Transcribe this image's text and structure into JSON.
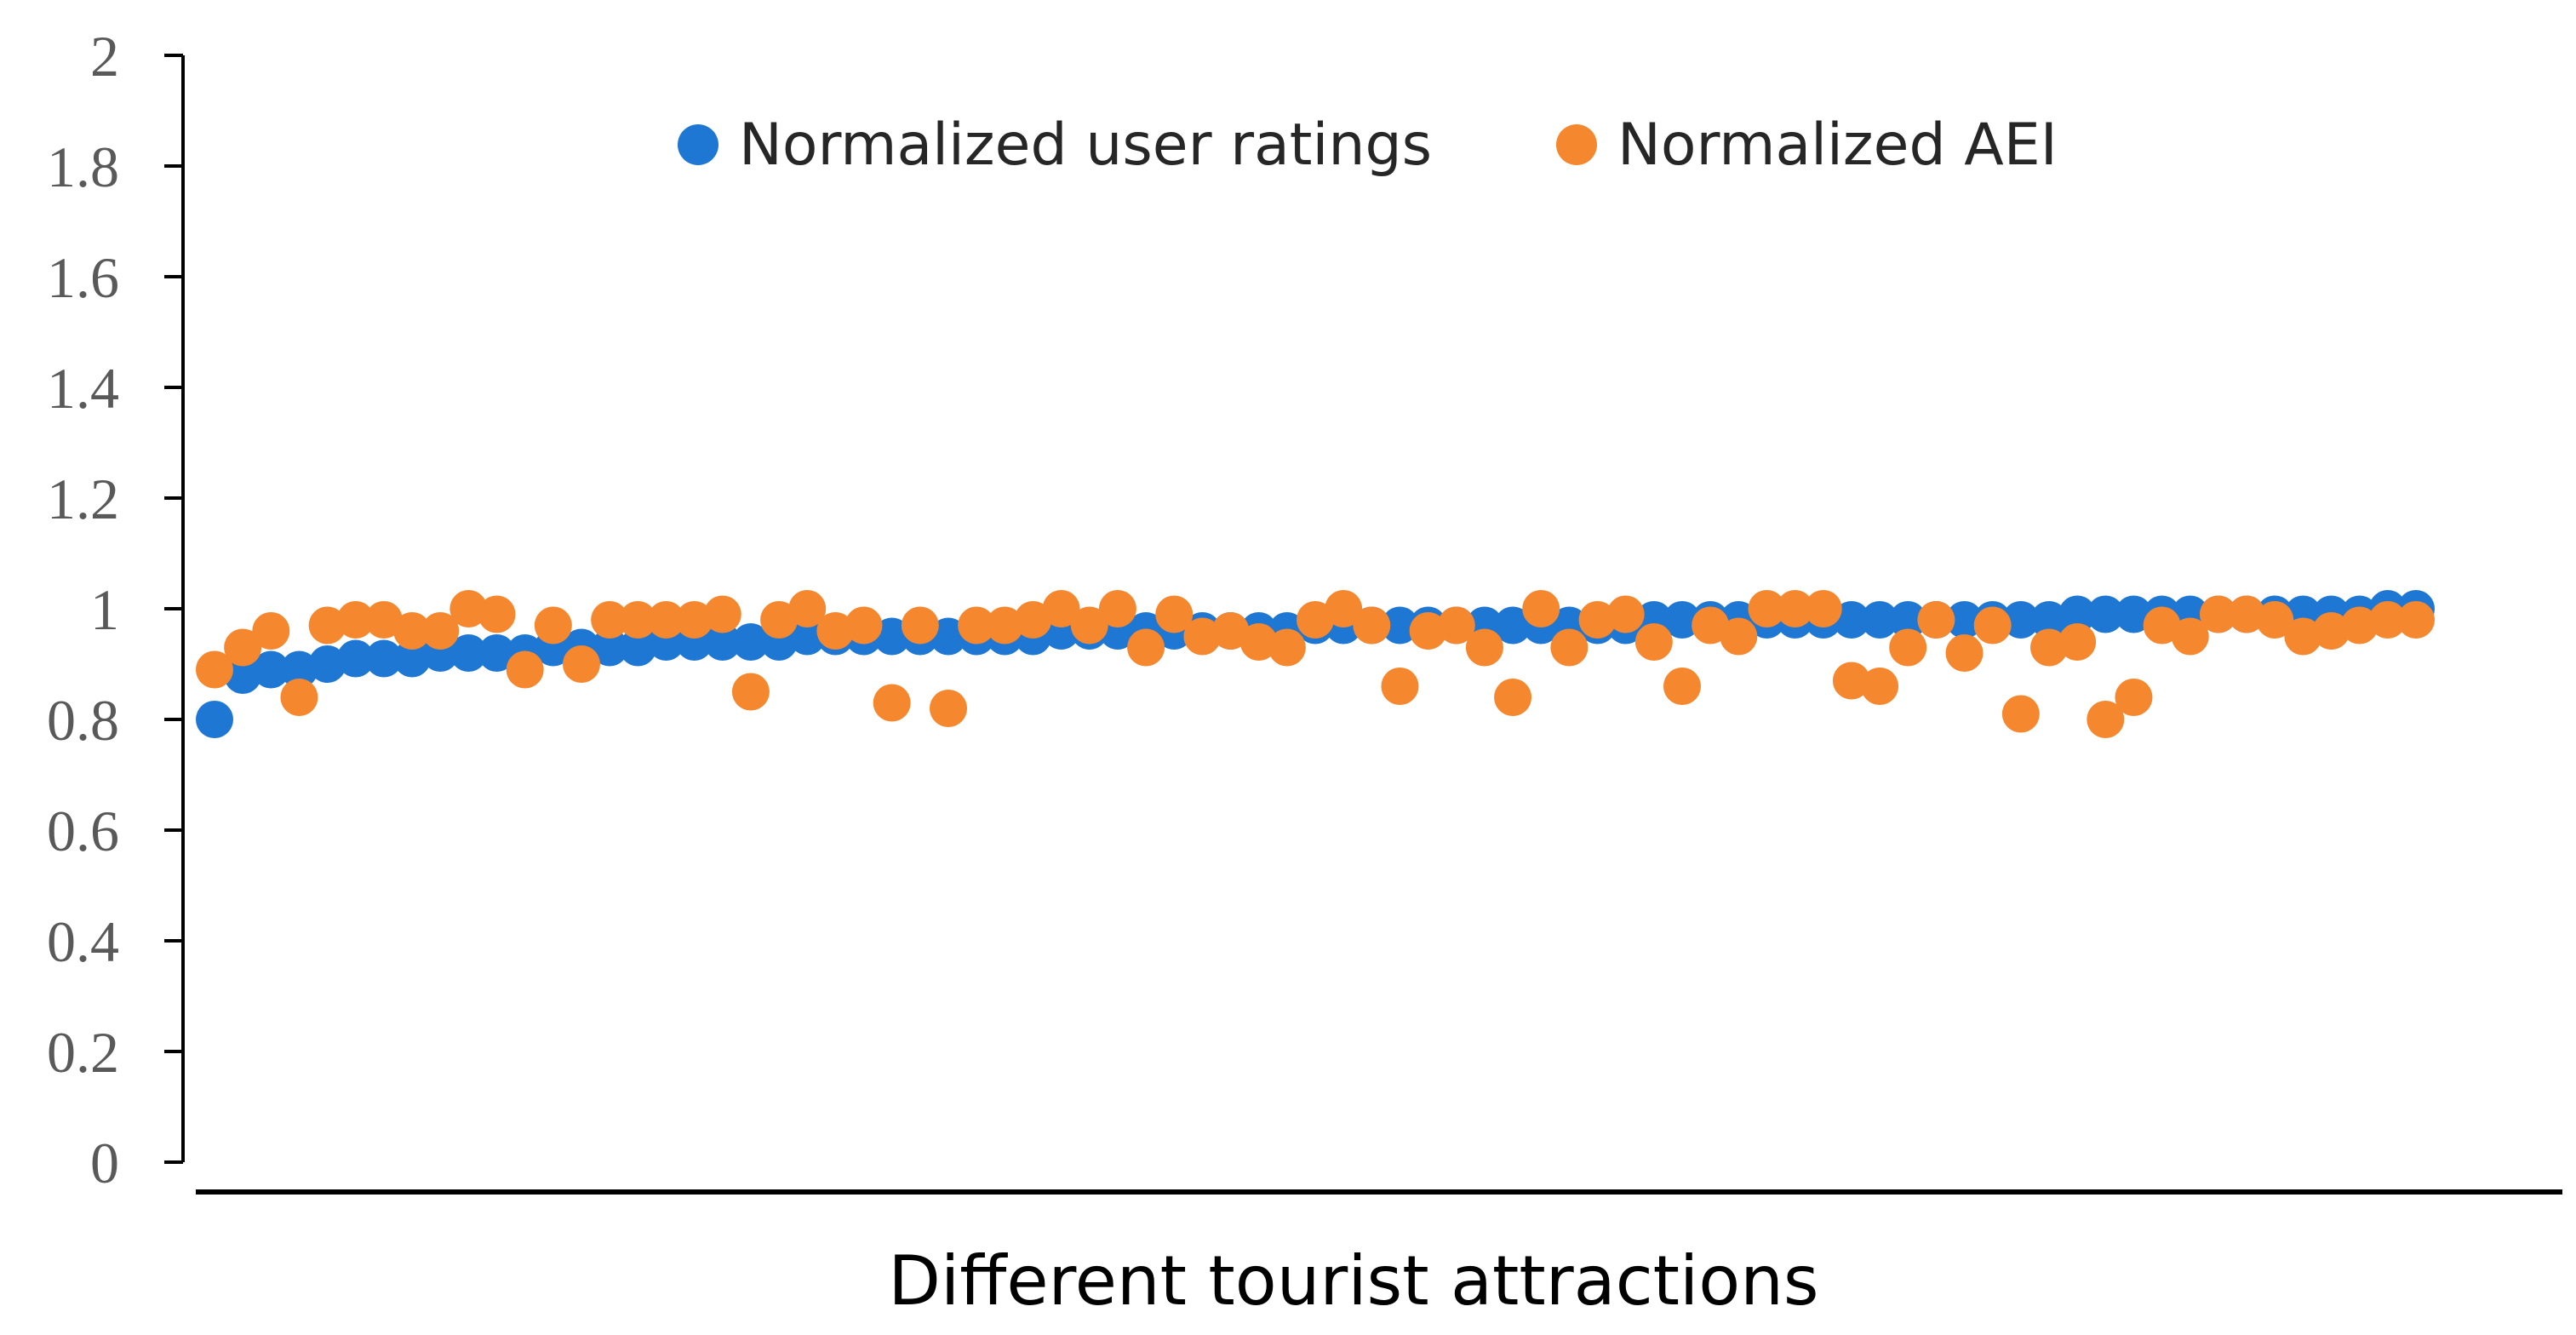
{
  "chart_data": {
    "type": "scatter",
    "title": "",
    "xlabel": "Different tourist attractions",
    "ylabel": "",
    "ylim": [
      0,
      2
    ],
    "yticks": [
      0,
      0.2,
      0.4,
      0.6,
      0.8,
      1,
      1.2,
      1.4,
      1.6,
      1.8,
      2
    ],
    "ytick_labels": [
      "0",
      "0.2",
      "0.4",
      "0.6",
      "0.8",
      "1",
      "1.2",
      "1.4",
      "1.6",
      "1.8",
      "2"
    ],
    "grid": false,
    "legend_position": "top-center",
    "x": [
      1,
      2,
      3,
      4,
      5,
      6,
      7,
      8,
      9,
      10,
      11,
      12,
      13,
      14,
      15,
      16,
      17,
      18,
      19,
      20,
      21,
      22,
      23,
      24,
      25,
      26,
      27,
      28,
      29,
      30,
      31,
      32,
      33,
      34,
      35,
      36,
      37,
      38,
      39,
      40,
      41,
      42,
      43,
      44,
      45,
      46,
      47,
      48,
      49,
      50,
      51,
      52,
      53,
      54,
      55,
      56,
      57,
      58,
      59,
      60,
      61,
      62,
      63,
      64,
      65,
      66,
      67,
      68,
      69,
      70,
      71,
      72,
      73,
      74,
      75,
      76,
      77,
      78,
      79
    ],
    "series": [
      {
        "name": "Normalized user ratings",
        "color": "#1F77D4",
        "values": [
          0.8,
          0.88,
          0.89,
          0.89,
          0.9,
          0.91,
          0.91,
          0.91,
          0.92,
          0.92,
          0.92,
          0.92,
          0.93,
          0.93,
          0.93,
          0.93,
          0.94,
          0.94,
          0.94,
          0.94,
          0.94,
          0.95,
          0.95,
          0.95,
          0.95,
          0.95,
          0.95,
          0.95,
          0.95,
          0.95,
          0.96,
          0.96,
          0.96,
          0.96,
          0.96,
          0.96,
          0.96,
          0.96,
          0.96,
          0.97,
          0.97,
          0.97,
          0.97,
          0.97,
          0.97,
          0.97,
          0.97,
          0.97,
          0.97,
          0.97,
          0.97,
          0.98,
          0.98,
          0.98,
          0.98,
          0.98,
          0.98,
          0.98,
          0.98,
          0.98,
          0.98,
          0.98,
          0.98,
          0.98,
          0.98,
          0.98,
          0.99,
          0.99,
          0.99,
          0.99,
          0.99,
          0.99,
          0.99,
          0.99,
          0.99,
          0.99,
          0.99,
          1.0,
          1.0
        ]
      },
      {
        "name": "Normalized AEI",
        "color": "#F5872E",
        "values": [
          0.89,
          0.93,
          0.96,
          0.84,
          0.97,
          0.98,
          0.98,
          0.96,
          0.96,
          1.0,
          0.99,
          0.89,
          0.97,
          0.9,
          0.98,
          0.98,
          0.98,
          0.98,
          0.99,
          0.85,
          0.98,
          1.0,
          0.96,
          0.97,
          0.83,
          0.97,
          0.82,
          0.97,
          0.97,
          0.98,
          1.0,
          0.97,
          1.0,
          0.93,
          0.99,
          0.95,
          0.96,
          0.94,
          0.93,
          0.98,
          1.0,
          0.97,
          0.86,
          0.96,
          0.97,
          0.93,
          0.84,
          1.0,
          0.93,
          0.98,
          0.99,
          0.94,
          0.86,
          0.97,
          0.95,
          1.0,
          1.0,
          1.0,
          0.87,
          0.86,
          0.93,
          0.98,
          0.92,
          0.97,
          0.81,
          0.93,
          0.94,
          0.8,
          0.84,
          0.97,
          0.95,
          0.99,
          0.99,
          0.98,
          0.95,
          0.96,
          0.97,
          0.98,
          0.98
        ]
      }
    ]
  }
}
